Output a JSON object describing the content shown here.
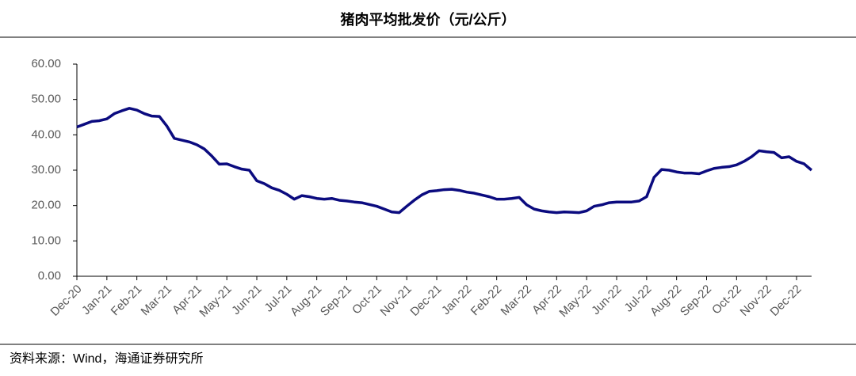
{
  "chart_data": {
    "type": "line",
    "title": "猪肉平均批发价（元/公斤）",
    "source": "资料来源：Wind，海通证券研究所",
    "categories": [
      "Dec-20",
      null,
      null,
      null,
      "Jan-21",
      null,
      null,
      null,
      "Feb-21",
      null,
      null,
      null,
      "Mar-21",
      null,
      null,
      null,
      "Apr-21",
      null,
      null,
      null,
      "May-21",
      null,
      null,
      null,
      "Jun-21",
      null,
      null,
      null,
      "Jul-21",
      null,
      null,
      null,
      "Aug-21",
      null,
      null,
      null,
      "Sep-21",
      null,
      null,
      null,
      "Oct-21",
      null,
      null,
      null,
      "Nov-21",
      null,
      null,
      null,
      "Dec-21",
      null,
      null,
      null,
      "Jan-22",
      null,
      null,
      null,
      "Feb-22",
      null,
      null,
      null,
      "Mar-22",
      null,
      null,
      null,
      "Apr-22",
      null,
      null,
      null,
      "May-22",
      null,
      null,
      null,
      "Jun-22",
      null,
      null,
      null,
      "Jul-22",
      null,
      null,
      null,
      "Aug-22",
      null,
      null,
      null,
      "Sep-22",
      null,
      null,
      null,
      "Oct-22",
      null,
      null,
      null,
      "Nov-22",
      null,
      null,
      null,
      "Dec-22",
      null,
      null
    ],
    "series": [
      {
        "name": "猪肉平均批发价",
        "color": "#0b0b7f",
        "values": [
          42.2,
          43,
          43.8,
          44,
          44.5,
          46,
          46.8,
          47.5,
          47,
          46,
          45.3,
          45.2,
          42.5,
          39,
          38.5,
          38,
          37.2,
          36,
          34,
          31.7,
          31.8,
          31,
          30.3,
          30,
          27,
          26.2,
          25,
          24.3,
          23.2,
          21.8,
          22.8,
          22.5,
          22,
          21.8,
          22,
          21.5,
          21.3,
          21,
          20.8,
          20.3,
          19.8,
          19,
          18.2,
          18,
          19.8,
          21.5,
          23,
          24,
          24.2,
          24.5,
          24.6,
          24.3,
          23.8,
          23.5,
          23,
          22.5,
          21.8,
          21.8,
          22,
          22.3,
          20.2,
          19,
          18.5,
          18.2,
          18,
          18.2,
          18.1,
          18,
          18.5,
          19.8,
          20.2,
          20.8,
          21,
          21,
          21,
          21.3,
          22.5,
          28,
          30.2,
          30,
          29.5,
          29.2,
          29.2,
          29,
          29.8,
          30.5,
          30.8,
          31,
          31.5,
          32.5,
          33.8,
          35.5,
          35.2,
          35,
          33.5,
          33.8,
          32.5,
          31.8,
          30
        ]
      }
    ],
    "ylim": [
      0,
      60
    ],
    "yticks": [
      {
        "value": 0,
        "label": "0.00"
      },
      {
        "value": 10,
        "label": "10.00"
      },
      {
        "value": 20,
        "label": "20.00"
      },
      {
        "value": 30,
        "label": "30.00"
      },
      {
        "value": 40,
        "label": "40.00"
      },
      {
        "value": 50,
        "label": "50.00"
      },
      {
        "value": 60,
        "label": "60.00"
      }
    ],
    "grid": false
  }
}
